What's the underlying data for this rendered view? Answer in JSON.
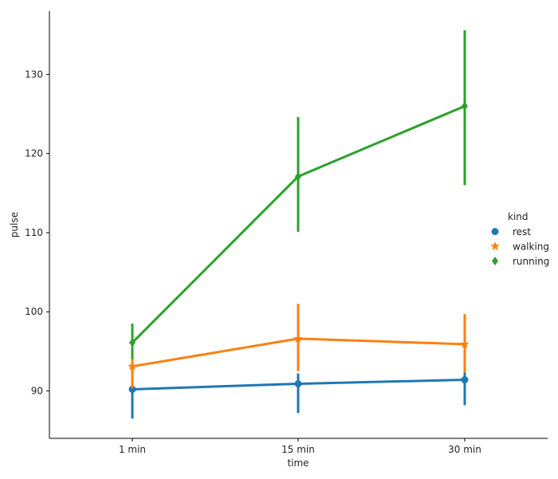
{
  "chart_data": {
    "type": "line",
    "xlabel": "time",
    "ylabel": "pulse",
    "categories": [
      "1 min",
      "15 min",
      "30 min"
    ],
    "ylim": [
      84,
      138
    ],
    "yticks": [
      90,
      100,
      110,
      120,
      130
    ],
    "grid": false,
    "legend": {
      "title": "kind",
      "placement": "right"
    },
    "series": [
      {
        "name": "rest",
        "color": "#1f77b4",
        "marker": "circle",
        "values": [
          90.2,
          90.9,
          91.4
        ],
        "ci_low": [
          86.5,
          87.2,
          88.2
        ],
        "ci_high": [
          92.0,
          92.2,
          92.6
        ]
      },
      {
        "name": "walking",
        "color": "#ff7f0e",
        "marker": "star",
        "values": [
          93.1,
          96.6,
          95.9
        ],
        "ci_low": [
          90.3,
          92.5,
          92.3
        ],
        "ci_high": [
          95.8,
          101.0,
          99.7
        ]
      },
      {
        "name": "running",
        "color": "#2ca02c",
        "marker": "diamond",
        "values": [
          96.1,
          117.1,
          126.0
        ],
        "ci_low": [
          94.0,
          110.1,
          116.0
        ],
        "ci_high": [
          98.5,
          124.6,
          135.6
        ]
      }
    ]
  }
}
